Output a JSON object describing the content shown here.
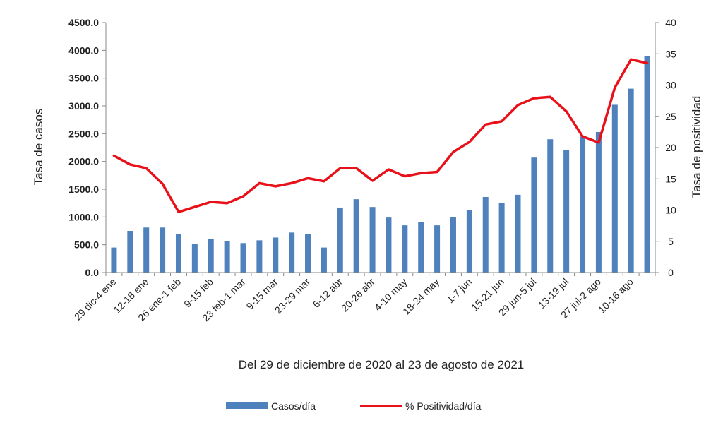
{
  "chart_data": {
    "type": "bar+line",
    "xlabel": "Del 29 de diciembre de 2020 al 23 de agosto de 2021",
    "ylabel_left": "Tasa de casos",
    "ylabel_right": "Tasa de positividad",
    "ylim_left": [
      0,
      4500
    ],
    "ylim_right": [
      0,
      40
    ],
    "yticks_left": [
      "0.0",
      "500.0",
      "1000.0",
      "1500.0",
      "2000.0",
      "2500.0",
      "3000.0",
      "3500.0",
      "4000.0",
      "4500.0"
    ],
    "yticks_right": [
      "0",
      "5",
      "10",
      "15",
      "20",
      "25",
      "30",
      "35",
      "40"
    ],
    "categories": [
      "29 dic-4 ene",
      "",
      "12-18 ene",
      "",
      "26 ene-1 feb",
      "",
      "9-15 feb",
      "",
      "23 feb-1 mar",
      "",
      "9-15 mar",
      "",
      "23-29 mar",
      "",
      "6-12 abr",
      "",
      "20-26 abr",
      "",
      "4-10 may",
      "",
      "18-24 may",
      "",
      "1-7 jun",
      "",
      "15-21 jun",
      "",
      "29 jun-5 jul",
      "",
      "13-19 jul",
      "",
      "27 jul-2 ago",
      "",
      "10-16 ago",
      ""
    ],
    "grid": false,
    "legend_position": "bottom",
    "series": [
      {
        "name": "Casos/día",
        "kind": "bar",
        "axis": "left",
        "color": "#4f81bd",
        "values": [
          450,
          750,
          810,
          810,
          690,
          510,
          600,
          570,
          530,
          580,
          630,
          720,
          690,
          450,
          1170,
          1320,
          1180,
          990,
          850,
          910,
          850,
          1000,
          1120,
          1360,
          1250,
          1400,
          2070,
          2400,
          2210,
          2450,
          2530,
          3020,
          3310,
          3890
        ]
      },
      {
        "name": "% Positividad/día",
        "kind": "line",
        "axis": "right",
        "color": "#e8111a",
        "values": [
          18.7,
          17.3,
          16.7,
          14.2,
          9.7,
          10.5,
          11.3,
          11.1,
          12.2,
          14.3,
          13.8,
          14.3,
          15.1,
          14.6,
          16.7,
          16.7,
          14.7,
          16.5,
          15.4,
          15.9,
          16.1,
          19.3,
          20.9,
          23.7,
          24.2,
          26.8,
          27.9,
          28.1,
          25.8,
          21.8,
          20.8,
          29.6,
          34.1,
          33.5
        ]
      }
    ]
  }
}
